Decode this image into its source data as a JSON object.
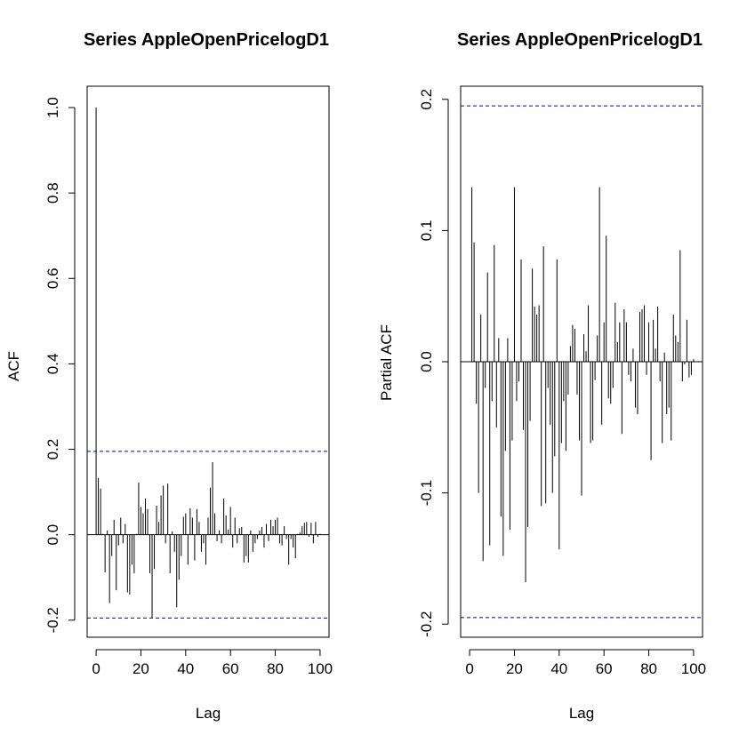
{
  "chart_data": [
    {
      "type": "bar",
      "title": "Series  AppleOpenPricelogD1",
      "xlabel": "Lag",
      "ylabel": "ACF",
      "xlim": [
        -4,
        104
      ],
      "ylim": [
        -0.24,
        1.05
      ],
      "xticks": [
        0,
        20,
        40,
        60,
        80,
        100
      ],
      "xtick_labels": [
        "0",
        "20",
        "40",
        "60",
        "80",
        "100"
      ],
      "yticks": [
        -0.2,
        0.0,
        0.2,
        0.4,
        0.6,
        0.8,
        1.0
      ],
      "ytick_labels": [
        "-0.2",
        "0.0",
        "0.2",
        "0.4",
        "0.6",
        "0.8",
        "1.0"
      ],
      "confidence_band": 0.195,
      "band_color": "#0000cc",
      "bar_color": "#000000",
      "grid": false,
      "lags": [
        0,
        1,
        2,
        3,
        4,
        5,
        6,
        7,
        8,
        9,
        10,
        11,
        12,
        13,
        14,
        15,
        16,
        17,
        18,
        19,
        20,
        21,
        22,
        23,
        24,
        25,
        26,
        27,
        28,
        29,
        30,
        31,
        32,
        33,
        34,
        35,
        36,
        37,
        38,
        39,
        40,
        41,
        42,
        43,
        44,
        45,
        46,
        47,
        48,
        49,
        50,
        51,
        52,
        53,
        54,
        55,
        56,
        57,
        58,
        59,
        60,
        61,
        62,
        63,
        64,
        65,
        66,
        67,
        68,
        69,
        70,
        71,
        72,
        73,
        74,
        75,
        76,
        77,
        78,
        79,
        80,
        81,
        82,
        83,
        84,
        85,
        86,
        87,
        88,
        89,
        90,
        91,
        92,
        93,
        94,
        95,
        96,
        97,
        98,
        99,
        100
      ],
      "values": [
        1.0,
        0.133,
        0.108,
        0.002,
        -0.088,
        0.01,
        -0.16,
        -0.05,
        0.035,
        -0.13,
        -0.025,
        0.04,
        -0.02,
        0.025,
        -0.135,
        -0.14,
        -0.07,
        -0.09,
        0.002,
        0.122,
        0.065,
        0.05,
        0.085,
        0.06,
        -0.09,
        -0.195,
        -0.08,
        0.068,
        0.03,
        0.092,
        0.115,
        -0.02,
        0.12,
        -0.09,
        0.008,
        -0.04,
        -0.17,
        -0.105,
        -0.05,
        0.042,
        0.05,
        -0.07,
        0.062,
        0.04,
        -0.06,
        0.06,
        0.03,
        -0.04,
        -0.02,
        -0.07,
        0.04,
        0.11,
        0.17,
        0.05,
        -0.015,
        0.01,
        -0.02,
        0.085,
        0.045,
        0.012,
        0.065,
        -0.03,
        0.04,
        -0.02,
        0.015,
        0.018,
        -0.065,
        -0.05,
        -0.065,
        0.01,
        -0.04,
        -0.02,
        -0.01,
        0.01,
        0.018,
        -0.03,
        0.025,
        -0.015,
        0.035,
        0.02,
        0.035,
        0.04,
        -0.02,
        -0.025,
        0.02,
        -0.01,
        -0.07,
        -0.01,
        -0.03,
        -0.055,
        0.002,
        0.005,
        0.02,
        0.028,
        0.03,
        -0.005,
        0.028,
        -0.02,
        0.03,
        -0.005,
        0.002
      ]
    },
    {
      "type": "bar",
      "title": "Series  AppleOpenPricelogD1",
      "xlabel": "Lag",
      "ylabel": "Partial ACF",
      "xlim": [
        -4,
        104
      ],
      "ylim": [
        -0.21,
        0.21
      ],
      "xticks": [
        0,
        20,
        40,
        60,
        80,
        100
      ],
      "xtick_labels": [
        "0",
        "20",
        "40",
        "60",
        "80",
        "100"
      ],
      "yticks": [
        -0.2,
        -0.1,
        0.0,
        0.1,
        0.2
      ],
      "ytick_labels": [
        "-0.2",
        "-0.1",
        "0.0",
        "0.1",
        "0.2"
      ],
      "confidence_band": 0.195,
      "band_color": "#0000cc",
      "bar_color": "#000000",
      "grid": false,
      "lags": [
        1,
        2,
        3,
        4,
        5,
        6,
        7,
        8,
        9,
        10,
        11,
        12,
        13,
        14,
        15,
        16,
        17,
        18,
        19,
        20,
        21,
        22,
        23,
        24,
        25,
        26,
        27,
        28,
        29,
        30,
        31,
        32,
        33,
        34,
        35,
        36,
        37,
        38,
        39,
        40,
        41,
        42,
        43,
        44,
        45,
        46,
        47,
        48,
        49,
        50,
        51,
        52,
        53,
        54,
        55,
        56,
        57,
        58,
        59,
        60,
        61,
        62,
        63,
        64,
        65,
        66,
        67,
        68,
        69,
        70,
        71,
        72,
        73,
        74,
        75,
        76,
        77,
        78,
        79,
        80,
        81,
        82,
        83,
        84,
        85,
        86,
        87,
        88,
        89,
        90,
        91,
        92,
        93,
        94,
        95,
        96,
        97,
        98,
        99,
        100
      ],
      "values": [
        0.133,
        0.091,
        -0.032,
        -0.1,
        0.036,
        -0.152,
        -0.02,
        0.068,
        -0.14,
        -0.03,
        0.089,
        -0.05,
        0.018,
        -0.118,
        -0.148,
        -0.068,
        0.018,
        -0.128,
        -0.06,
        0.133,
        -0.03,
        -0.015,
        0.078,
        -0.052,
        -0.168,
        -0.126,
        -0.045,
        0.071,
        0.042,
        0.036,
        0.043,
        -0.11,
        0.088,
        -0.108,
        -0.02,
        -0.048,
        -0.1,
        -0.072,
        0.078,
        -0.143,
        -0.062,
        -0.03,
        -0.068,
        -0.025,
        0.012,
        0.028,
        0.025,
        -0.025,
        -0.06,
        -0.102,
        0.021,
        0.008,
        0.043,
        -0.062,
        -0.06,
        -0.014,
        0.02,
        0.133,
        -0.048,
        0.03,
        0.096,
        -0.028,
        -0.032,
        -0.02,
        0.045,
        0.015,
        0.03,
        -0.055,
        0.04,
        0.03,
        -0.01,
        -0.015,
        0.01,
        -0.035,
        -0.04,
        0.038,
        0.04,
        0.043,
        -0.01,
        0.03,
        -0.075,
        0.032,
        0.01,
        0.042,
        -0.015,
        -0.062,
        0.007,
        -0.04,
        -0.035,
        -0.06,
        0.036,
        0.02,
        0.015,
        0.085,
        -0.015,
        -0.002,
        0.032,
        -0.012,
        -0.01,
        0.002
      ]
    }
  ]
}
